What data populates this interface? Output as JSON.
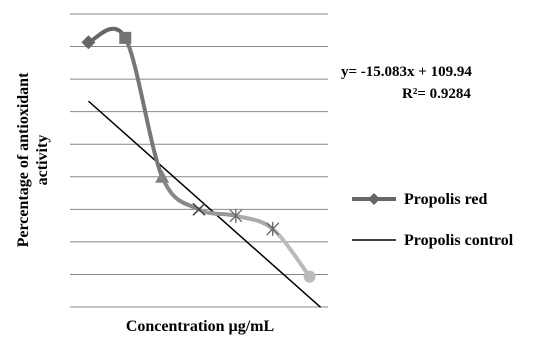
{
  "chart_data": {
    "type": "line",
    "title": "",
    "xlabel": "Concentration µg/mL",
    "ylabel_lines": [
      "Percentage of antioxidant",
      "activity"
    ],
    "x": [
      1,
      2,
      3,
      4,
      5,
      6,
      7
    ],
    "ylim": [
      0,
      135
    ],
    "grid": true,
    "legend_position": "right",
    "series": [
      {
        "name": "Propolis red",
        "values": [
          122,
          124,
          60,
          45,
          42,
          36,
          14
        ],
        "marker_names": [
          "diamond",
          "square",
          "triangle",
          "x",
          "star",
          "star",
          "circle"
        ]
      },
      {
        "name": "Propolis control",
        "kind": "trendline",
        "equation": "y= -15.083x + 109.94",
        "slope": -15.083,
        "intercept": 109.94,
        "r_squared": "R²= 0.9284"
      }
    ],
    "colors": {
      "series_start": "#666666",
      "series_end": "#bbbbbb",
      "grid": "#888888",
      "trendline": "#000000"
    }
  }
}
